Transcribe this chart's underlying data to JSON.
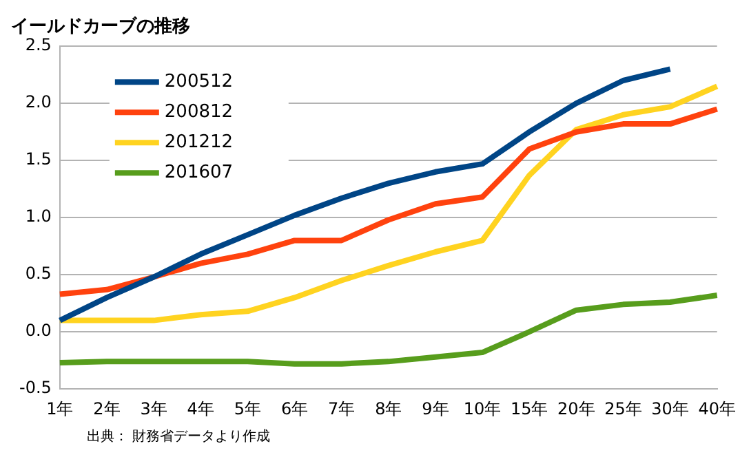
{
  "chart_data": {
    "type": "line",
    "title": "イールドカーブの推移",
    "categories": [
      "1年",
      "2年",
      "3年",
      "4年",
      "5年",
      "6年",
      "7年",
      "8年",
      "9年",
      "10年",
      "15年",
      "20年",
      "25年",
      "30年",
      "40年"
    ],
    "series": [
      {
        "name": "200512",
        "color": "#004586",
        "values": [
          0.1,
          0.3,
          0.48,
          0.68,
          0.85,
          1.02,
          1.17,
          1.3,
          1.4,
          1.47,
          1.75,
          2.0,
          2.2,
          2.3,
          null
        ]
      },
      {
        "name": "200812",
        "color": "#ff420e",
        "values": [
          0.33,
          0.37,
          0.48,
          0.6,
          0.68,
          0.8,
          0.8,
          0.98,
          1.12,
          1.18,
          1.6,
          1.75,
          1.82,
          1.82,
          1.95
        ]
      },
      {
        "name": "201212",
        "color": "#ffd320",
        "values": [
          0.1,
          0.1,
          0.1,
          0.15,
          0.18,
          0.3,
          0.45,
          0.58,
          0.7,
          0.8,
          1.37,
          1.77,
          1.9,
          1.97,
          2.15
        ]
      },
      {
        "name": "201607",
        "color": "#579d1c",
        "values": [
          -0.27,
          -0.26,
          -0.26,
          -0.26,
          -0.26,
          -0.28,
          -0.28,
          -0.26,
          -0.22,
          -0.18,
          0.0,
          0.19,
          0.24,
          0.26,
          0.32
        ]
      }
    ],
    "ylim": [
      -0.5,
      2.5
    ],
    "yticks": [
      {
        "value": -0.5,
        "label": "-0.5"
      },
      {
        "value": 0,
        "label": "0.0"
      },
      {
        "value": 0.5,
        "label": "0.5"
      },
      {
        "value": 1,
        "label": "1.0"
      },
      {
        "value": 1.5,
        "label": "1.5"
      },
      {
        "value": 2,
        "label": "2.0"
      },
      {
        "value": 2.5,
        "label": "2.5"
      }
    ],
    "grid": "y",
    "legend": "top left",
    "marker": "none",
    "line_style": "solid",
    "annotations": [
      "出典： 財務省データより作成"
    ]
  }
}
